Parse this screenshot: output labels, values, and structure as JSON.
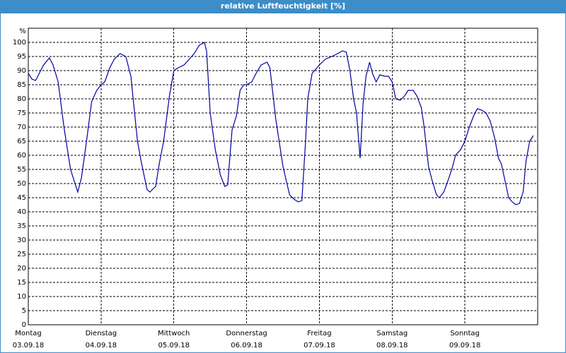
{
  "chart_data": {
    "type": "line",
    "title": "relative Luftfeuchtigkeit [%]",
    "y_unit": "%",
    "xlim": [
      0,
      7
    ],
    "xticks": [
      {
        "value": 0,
        "label": "Montag"
      },
      {
        "value": 1,
        "label": "Dienstag"
      },
      {
        "value": 2,
        "label": "Mittwoch"
      },
      {
        "value": 3,
        "label": "Donnerstag"
      },
      {
        "value": 4,
        "label": "Freitag"
      },
      {
        "value": 5,
        "label": "Samstag"
      },
      {
        "value": 6,
        "label": "Sonntag"
      }
    ],
    "xtick_dates": [
      "03.09.18",
      "04.09.18",
      "05.09.18",
      "06.09.18",
      "07.09.18",
      "08.09.18",
      "09.09.18"
    ],
    "ylim": [
      0,
      105
    ],
    "yticks": [
      0,
      5,
      10,
      15,
      20,
      25,
      30,
      35,
      40,
      45,
      50,
      55,
      60,
      65,
      70,
      75,
      80,
      85,
      90,
      95,
      100
    ],
    "grid": true,
    "color": "#0000a0",
    "x": [
      0,
      0.05,
      0.1,
      0.15,
      0.21,
      0.29,
      0.34,
      0.41,
      0.49,
      0.58,
      0.68,
      0.73,
      0.8,
      0.87,
      0.94,
      1.0,
      1.05,
      1.12,
      1.18,
      1.26,
      1.34,
      1.41,
      1.5,
      1.55,
      1.63,
      1.67,
      1.75,
      1.8,
      1.86,
      1.94,
      2.0,
      2.06,
      2.14,
      2.21,
      2.28,
      2.35,
      2.42,
      2.45,
      2.5,
      2.57,
      2.64,
      2.7,
      2.74,
      2.8,
      2.86,
      2.91,
      2.96,
      3.0,
      3.07,
      3.13,
      3.2,
      3.28,
      3.32,
      3.4,
      3.5,
      3.59,
      3.65,
      3.71,
      3.76,
      3.81,
      3.84,
      3.9,
      4.0,
      4.08,
      4.17,
      4.25,
      4.32,
      4.37,
      4.42,
      4.47,
      4.51,
      4.56,
      4.6,
      4.64,
      4.69,
      4.73,
      4.78,
      4.83,
      4.9,
      4.95,
      5.0,
      5.05,
      5.11,
      5.17,
      5.22,
      5.29,
      5.34,
      5.4,
      5.44,
      5.5,
      5.55,
      5.61,
      5.65,
      5.71,
      5.78,
      5.83,
      5.87,
      5.94,
      6.0,
      6.06,
      6.12,
      6.17,
      6.23,
      6.29,
      6.35,
      6.41,
      6.46,
      6.5,
      6.56,
      6.6,
      6.65,
      6.7,
      6.75,
      6.8,
      6.84,
      6.89,
      6.94
    ],
    "values": [
      89,
      87,
      86.5,
      89,
      92,
      94.5,
      92,
      86,
      70,
      55,
      47,
      52,
      65,
      79,
      83,
      85,
      86,
      91,
      94,
      96,
      95,
      88,
      65,
      58,
      48,
      47,
      49,
      57,
      65,
      81,
      90,
      91,
      92,
      94,
      96,
      99,
      100,
      97,
      75,
      62,
      53,
      49,
      49.5,
      69,
      74,
      83,
      85,
      85,
      86,
      89,
      92,
      93,
      91,
      73,
      56,
      46,
      44.5,
      43.5,
      44,
      65,
      80,
      89,
      92,
      94,
      95,
      96,
      97,
      96.5,
      90,
      80,
      75,
      59,
      78,
      88,
      93,
      89,
      86,
      88.5,
      88,
      88,
      86,
      80,
      79.5,
      81,
      83,
      83,
      81,
      77,
      70,
      56,
      51,
      46,
      45,
      47,
      52,
      56,
      60,
      62,
      65,
      70,
      74,
      76.5,
      76,
      75,
      72,
      66,
      59,
      57,
      50,
      45,
      43.5,
      42.5,
      43,
      47,
      58,
      65,
      67
    ]
  }
}
